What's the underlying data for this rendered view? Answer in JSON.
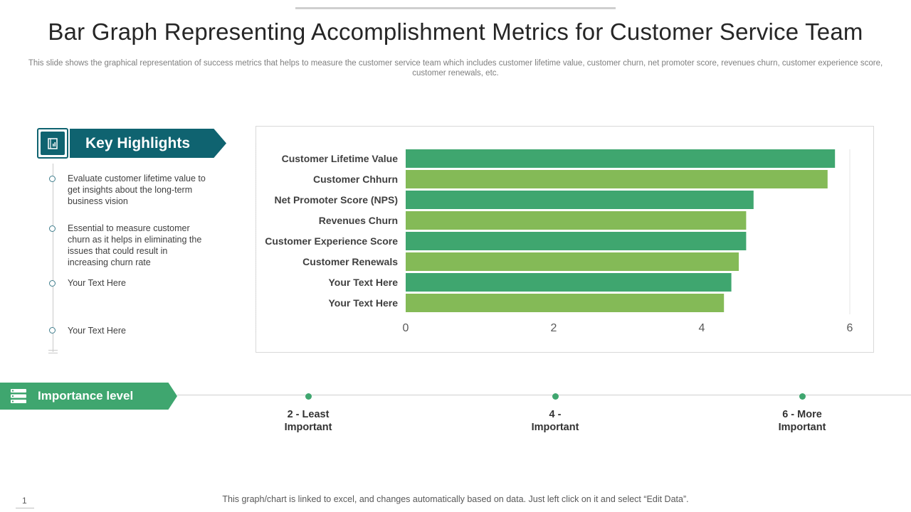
{
  "slide": {
    "title": "Bar Graph Representing Accomplishment Metrics for Customer Service Team",
    "subtitle": "This slide shows the graphical representation of success metrics that helps to measure the customer service team which includes customer lifetime value, customer churn, net promoter score, revenues churn, customer experience score, customer renewals, etc.",
    "footer": "This graph/chart is linked to excel, and changes automatically based on data. Just left click on it and select “Edit Data”.",
    "page_number": "1"
  },
  "highlights": {
    "header": "Key Highlights",
    "icon": "report-book-icon",
    "items": [
      "Evaluate  customer lifetime value to get insights about the long-term business vision",
      "Essential to measure customer churn as it helps in eliminating the issues that could result in increasing churn rate",
      "Your Text Here",
      "Your Text Here"
    ]
  },
  "importance": {
    "header": "Importance level",
    "icon": "list-icon",
    "levels": [
      {
        "line1": "2 - Least",
        "line2": "Important"
      },
      {
        "line1": "4 -",
        "line2": "Important"
      },
      {
        "line1": "6 - More",
        "line2": "Important"
      }
    ]
  },
  "colors": {
    "teal": "#0f6370",
    "bar_dark": "#3fa66f",
    "bar_light": "#84ba57",
    "accent_green": "#3fa66f"
  },
  "chart_data": {
    "type": "bar",
    "orientation": "horizontal",
    "categories": [
      "Customer Lifetime Value",
      "Customer Chhurn",
      "Net Promoter Score (NPS)",
      "Revenues Churn",
      "Customer Experience Score",
      "Customer Renewals",
      "Your Text Here",
      "Your Text Here"
    ],
    "values": [
      5.8,
      5.7,
      4.7,
      4.6,
      4.6,
      4.5,
      4.4,
      4.3
    ],
    "xlim": [
      0,
      6
    ],
    "xticks": [
      "0",
      "2",
      "4",
      "6"
    ],
    "grid": false,
    "legend": "none"
  }
}
